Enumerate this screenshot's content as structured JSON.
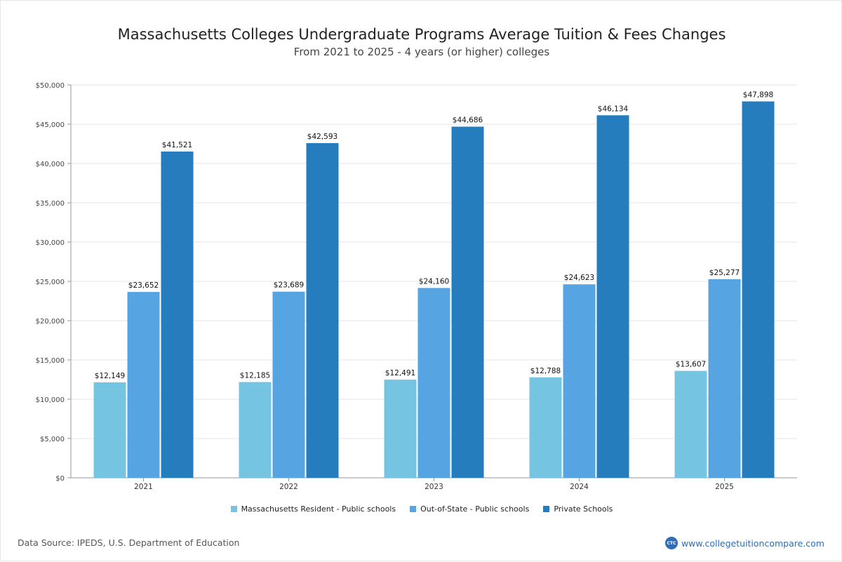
{
  "footer": {
    "source": "Data Source: IPEDS, U.S. Department of Education",
    "website": "www.collegetuitioncompare.com",
    "logo_text": "CTC"
  },
  "chart_data": {
    "type": "bar",
    "title": "Massachusetts Colleges Undergraduate Programs Average Tuition & Fees Changes",
    "subtitle": "From 2021 to 2025 - 4 years (or higher) colleges",
    "xlabel": "",
    "ylabel": "",
    "categories": [
      "2021",
      "2022",
      "2023",
      "2024",
      "2025"
    ],
    "series": [
      {
        "name": "Massachusetts Resident - Public schools",
        "color": "#74c4e2",
        "values": [
          12149,
          12185,
          12491,
          12788,
          13607
        ],
        "labels": [
          "$12,149",
          "$12,185",
          "$12,491",
          "$12,788",
          "$13,607"
        ]
      },
      {
        "name": "Out-of-State - Public schools",
        "color": "#56a5e2",
        "values": [
          23652,
          23689,
          24160,
          24623,
          25277
        ],
        "labels": [
          "$23,652",
          "$23,689",
          "$24,160",
          "$24,623",
          "$25,277"
        ]
      },
      {
        "name": "Private Schools",
        "color": "#257dbe",
        "values": [
          41521,
          42593,
          44686,
          46134,
          47898
        ],
        "labels": [
          "$41,521",
          "$42,593",
          "$44,686",
          "$46,134",
          "$47,898"
        ]
      }
    ],
    "ylim": [
      0,
      50000
    ],
    "yticks": [
      0,
      5000,
      10000,
      15000,
      20000,
      25000,
      30000,
      35000,
      40000,
      45000,
      50000
    ],
    "ytick_labels": [
      "$0",
      "$5,000",
      "$10,000",
      "$15,000",
      "$20,000",
      "$25,000",
      "$30,000",
      "$35,000",
      "$40,000",
      "$45,000",
      "$50,000"
    ],
    "grid": true,
    "legend": "bottom-center"
  }
}
